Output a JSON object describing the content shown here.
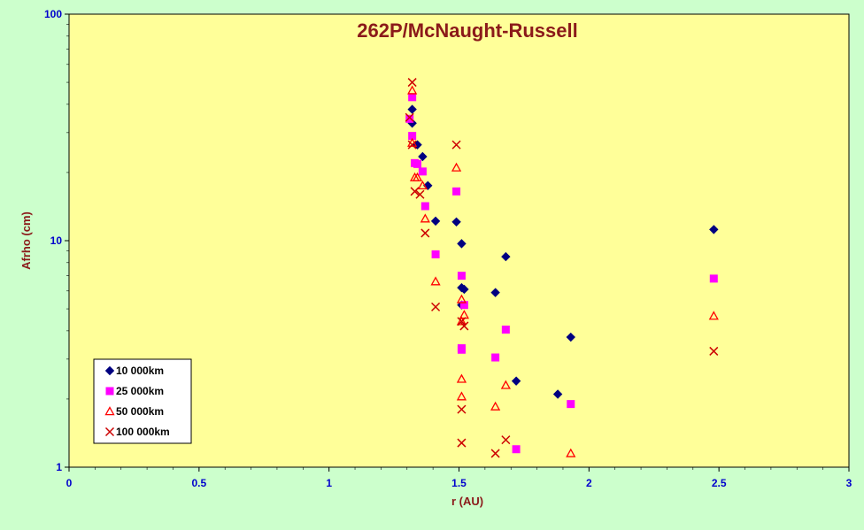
{
  "chart_data": {
    "type": "scatter",
    "title": "262P/McNaught-Russell",
    "xlabel": "r (AU)",
    "ylabel": "Afrho (cm)",
    "xlim": [
      0,
      3
    ],
    "ylim": [
      1,
      100
    ],
    "y_scale": "log",
    "x_ticks": [
      "0",
      "0.5",
      "1",
      "1.5",
      "2",
      "2.5",
      "3"
    ],
    "y_ticks": [
      "1",
      "10",
      "100"
    ],
    "legend_position": "bottom-left",
    "grid": false,
    "colors": {
      "background": "#ccffcc",
      "plot_area": "#ffff99"
    },
    "series": [
      {
        "name": "10 000km",
        "marker": "diamond",
        "color": "#000080",
        "points": [
          [
            1.32,
            38
          ],
          [
            1.32,
            33
          ],
          [
            1.34,
            26.5
          ],
          [
            1.36,
            23.5
          ],
          [
            1.38,
            17.5
          ],
          [
            1.41,
            12.2
          ],
          [
            1.49,
            12.1
          ],
          [
            1.51,
            9.7
          ],
          [
            1.51,
            6.2
          ],
          [
            1.52,
            6.1
          ],
          [
            1.51,
            5.2
          ],
          [
            1.64,
            5.9
          ],
          [
            1.68,
            8.5
          ],
          [
            1.72,
            2.4
          ],
          [
            1.88,
            2.1
          ],
          [
            1.93,
            3.75
          ],
          [
            2.48,
            11.2
          ]
        ]
      },
      {
        "name": "25 000km",
        "marker": "square",
        "color": "#ff00ff",
        "points": [
          [
            1.31,
            34.5
          ],
          [
            1.32,
            43
          ],
          [
            1.32,
            29
          ],
          [
            1.33,
            22
          ],
          [
            1.34,
            21.8
          ],
          [
            1.36,
            20.2
          ],
          [
            1.37,
            14.2
          ],
          [
            1.41,
            8.7
          ],
          [
            1.49,
            16.5
          ],
          [
            1.51,
            7
          ],
          [
            1.52,
            5.2
          ],
          [
            1.51,
            3.3
          ],
          [
            1.51,
            3.35
          ],
          [
            1.64,
            3.05
          ],
          [
            1.68,
            4.05
          ],
          [
            1.72,
            1.2
          ],
          [
            1.93,
            1.9
          ],
          [
            2.48,
            6.8
          ]
        ]
      },
      {
        "name": "50 000km",
        "marker": "triangle",
        "color": "#ff0000",
        "points": [
          [
            1.32,
            46
          ],
          [
            1.32,
            27
          ],
          [
            1.33,
            19
          ],
          [
            1.34,
            19
          ],
          [
            1.36,
            17.5
          ],
          [
            1.37,
            12.5
          ],
          [
            1.41,
            6.6
          ],
          [
            1.49,
            21
          ],
          [
            1.51,
            5.5
          ],
          [
            1.51,
            4.4
          ],
          [
            1.51,
            2.05
          ],
          [
            1.51,
            2.45
          ],
          [
            1.52,
            4.7
          ],
          [
            1.64,
            1.85
          ],
          [
            1.68,
            2.3
          ],
          [
            1.93,
            1.15
          ],
          [
            2.48,
            4.65
          ]
        ]
      },
      {
        "name": "100 000km",
        "marker": "x",
        "color": "#cc0000",
        "points": [
          [
            1.32,
            50
          ],
          [
            1.31,
            35
          ],
          [
            1.32,
            26.5
          ],
          [
            1.33,
            16.5
          ],
          [
            1.35,
            16
          ],
          [
            1.37,
            10.8
          ],
          [
            1.41,
            5.1
          ],
          [
            1.49,
            26.5
          ],
          [
            1.51,
            4.4
          ],
          [
            1.52,
            4.2
          ],
          [
            1.51,
            1.8
          ],
          [
            1.51,
            1.28
          ],
          [
            1.64,
            1.15
          ],
          [
            1.68,
            1.32
          ],
          [
            2.48,
            3.25
          ]
        ]
      }
    ]
  }
}
